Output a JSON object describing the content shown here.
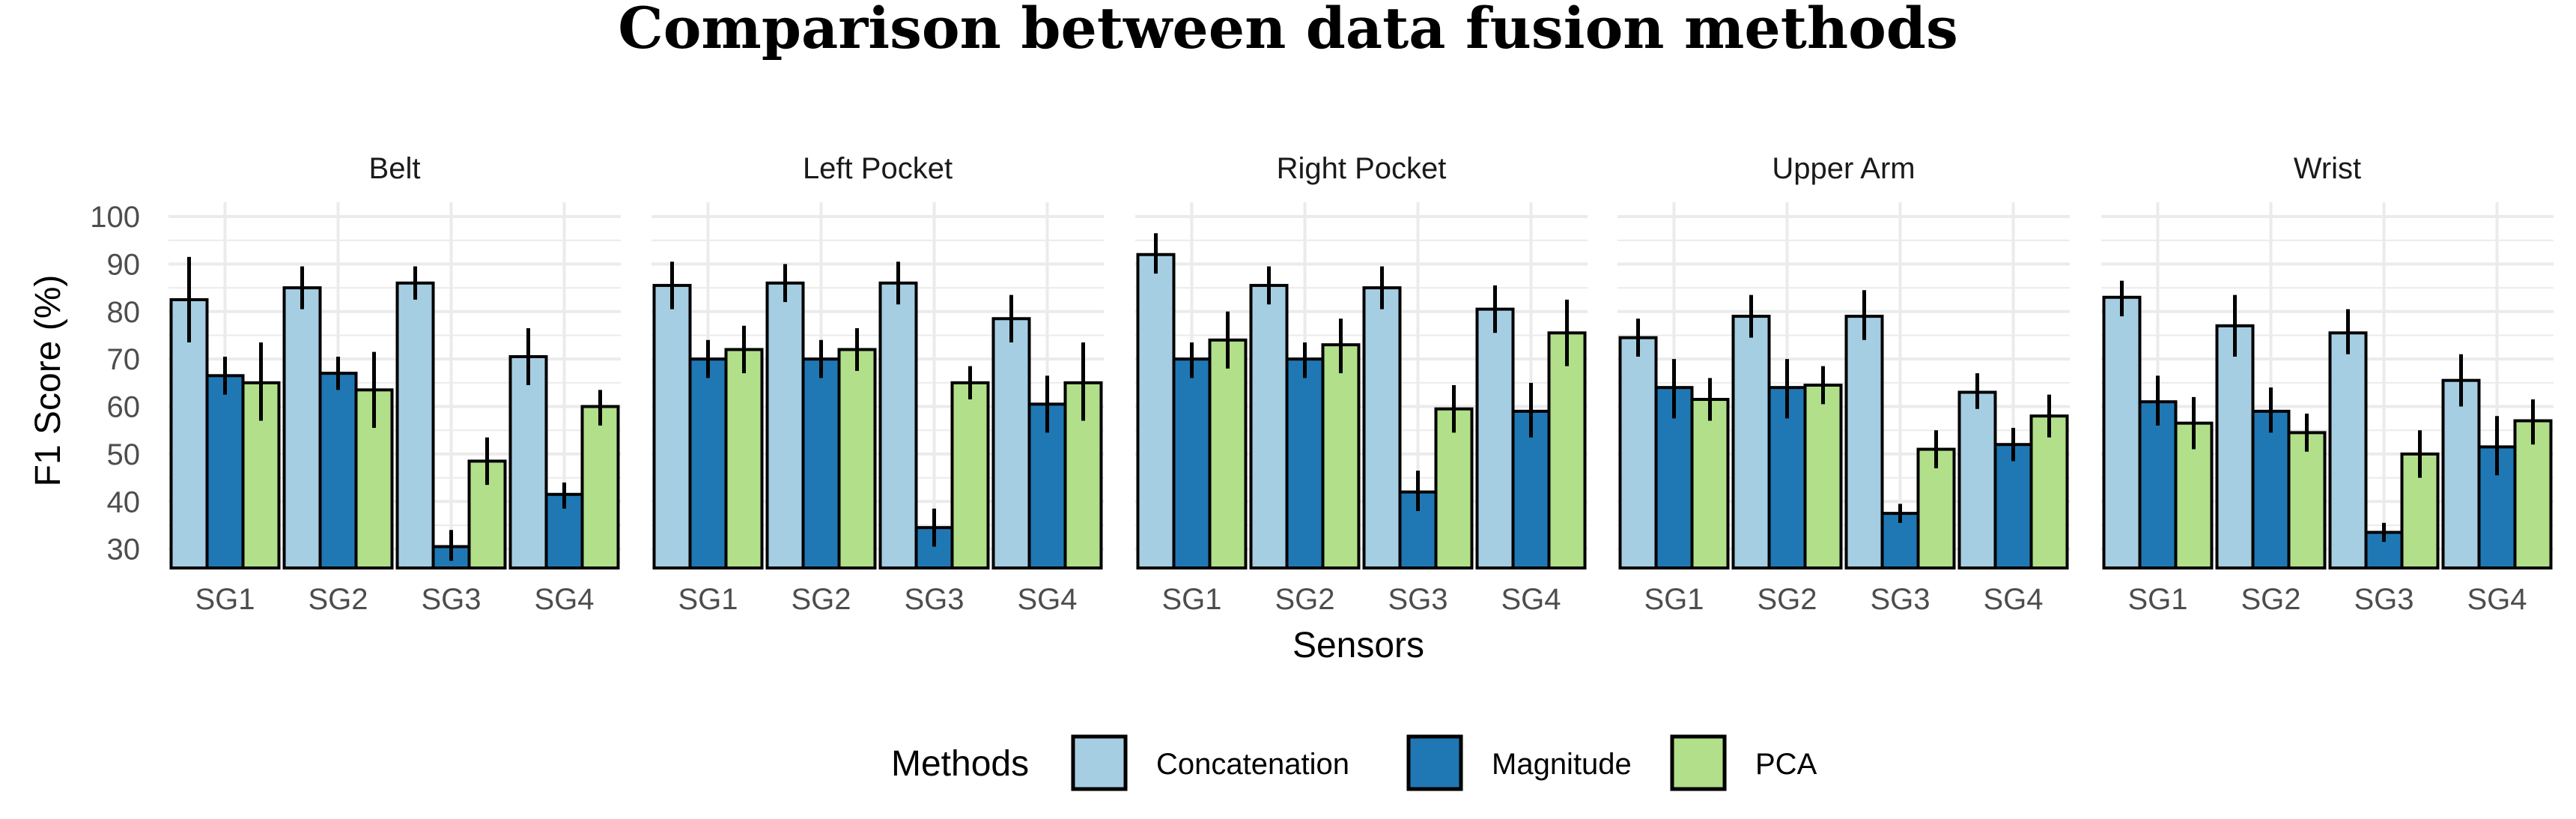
{
  "chart_data": {
    "type": "bar",
    "title": "Comparison between data fusion methods",
    "xlabel": "Sensors",
    "ylabel": "F1 Score (%)",
    "ylim": [
      26,
      103
    ],
    "yticks": [
      30,
      40,
      50,
      60,
      70,
      80,
      90,
      100
    ],
    "grid": true,
    "categories": [
      "SG1",
      "SG2",
      "SG3",
      "SG4"
    ],
    "legend": {
      "title": "Methods",
      "placement": "bottom",
      "entries": [
        "Concatenation",
        "Magnitude",
        "PCA"
      ]
    },
    "colors": {
      "Concatenation": "#a6cee3",
      "Magnitude": "#1f78b4",
      "PCA": "#b2df8a",
      "grid": "#ebebeb",
      "outline": "#000000"
    },
    "facets": [
      {
        "name": "Belt",
        "series": [
          {
            "name": "Concatenation",
            "values": [
              82.5,
              85,
              86,
              70.5
            ],
            "err_low": [
              73.5,
              80.5,
              82.5,
              64.5
            ],
            "err_high": [
              91.5,
              89.5,
              89.5,
              76.5
            ]
          },
          {
            "name": "Magnitude",
            "values": [
              66.5,
              67,
              30.5,
              41.5
            ],
            "err_low": [
              62.5,
              63.5,
              27.5,
              38.5
            ],
            "err_high": [
              70.5,
              70.5,
              34,
              44
            ]
          },
          {
            "name": "PCA",
            "values": [
              65,
              63.5,
              48.5,
              60
            ],
            "err_low": [
              57,
              55.5,
              43.5,
              56
            ],
            "err_high": [
              73.5,
              71.5,
              53.5,
              63.5
            ]
          }
        ]
      },
      {
        "name": "Left Pocket",
        "series": [
          {
            "name": "Concatenation",
            "values": [
              85.5,
              86,
              86,
              78.5
            ],
            "err_low": [
              80.5,
              82,
              81.5,
              73.5
            ],
            "err_high": [
              90.5,
              90,
              90.5,
              83.5
            ]
          },
          {
            "name": "Magnitude",
            "values": [
              70,
              70,
              34.5,
              60.5
            ],
            "err_low": [
              66,
              66,
              30.5,
              54.5
            ],
            "err_high": [
              74,
              74,
              38.5,
              66.5
            ]
          },
          {
            "name": "PCA",
            "values": [
              72,
              72,
              65,
              65
            ],
            "err_low": [
              67,
              67.5,
              61.5,
              57
            ],
            "err_high": [
              77,
              76.5,
              68.5,
              73.5
            ]
          }
        ]
      },
      {
        "name": "Right Pocket",
        "series": [
          {
            "name": "Concatenation",
            "values": [
              92,
              85.5,
              85,
              80.5
            ],
            "err_low": [
              88,
              81.5,
              80.5,
              75.5
            ],
            "err_high": [
              96.5,
              89.5,
              89.5,
              85.5
            ]
          },
          {
            "name": "Magnitude",
            "values": [
              70,
              70,
              42,
              59
            ],
            "err_low": [
              66,
              66,
              38,
              53.5
            ],
            "err_high": [
              73.5,
              73.5,
              46.5,
              65
            ]
          },
          {
            "name": "PCA",
            "values": [
              74,
              73,
              59.5,
              75.5
            ],
            "err_low": [
              68,
              67,
              54.5,
              68.5
            ],
            "err_high": [
              80,
              78.5,
              64.5,
              82.5
            ]
          }
        ]
      },
      {
        "name": "Upper Arm",
        "series": [
          {
            "name": "Concatenation",
            "values": [
              74.5,
              79,
              79,
              63
            ],
            "err_low": [
              70.5,
              74.5,
              74,
              59.5
            ],
            "err_high": [
              78.5,
              83.5,
              84.5,
              67
            ]
          },
          {
            "name": "Magnitude",
            "values": [
              64,
              64,
              37.5,
              52
            ],
            "err_low": [
              57.5,
              57.5,
              35.5,
              48.5
            ],
            "err_high": [
              70,
              70,
              39.5,
              55.5
            ]
          },
          {
            "name": "PCA",
            "values": [
              61.5,
              64.5,
              51,
              58
            ],
            "err_low": [
              57,
              60.5,
              47,
              53.5
            ],
            "err_high": [
              66,
              68.5,
              55,
              62.5
            ]
          }
        ]
      },
      {
        "name": "Wrist",
        "series": [
          {
            "name": "Concatenation",
            "values": [
              83,
              77,
              75.5,
              65.5
            ],
            "err_low": [
              79,
              70.5,
              71,
              60
            ],
            "err_high": [
              86.5,
              83.5,
              80.5,
              71
            ]
          },
          {
            "name": "Magnitude",
            "values": [
              61,
              59,
              33.5,
              51.5
            ],
            "err_low": [
              56,
              54.5,
              31.5,
              45.5
            ],
            "err_high": [
              66.5,
              64,
              35.5,
              58
            ]
          },
          {
            "name": "PCA",
            "values": [
              56.5,
              54.5,
              50,
              57
            ],
            "err_low": [
              51,
              50.5,
              45,
              52
            ],
            "err_high": [
              62,
              58.5,
              55,
              61.5
            ]
          }
        ]
      }
    ]
  }
}
